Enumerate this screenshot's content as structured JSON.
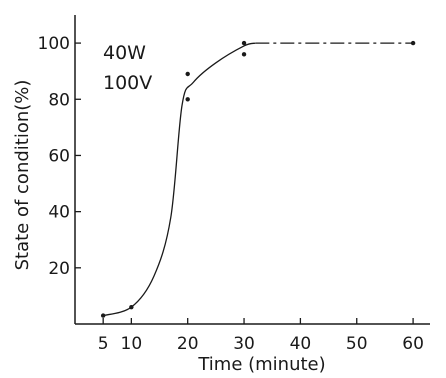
{
  "chart_data": {
    "type": "line",
    "xlabel": "Time (minute)",
    "ylabel": "State of condition(%)",
    "xlim": [
      0,
      63
    ],
    "ylim": [
      0,
      110
    ],
    "x_ticks": [
      5,
      10,
      20,
      30,
      40,
      50,
      60
    ],
    "y_ticks": [
      20,
      40,
      60,
      80,
      100
    ],
    "annotations": [
      "40W",
      "100V"
    ],
    "points": [
      {
        "x": 5,
        "y": 3
      },
      {
        "x": 10,
        "y": 6
      },
      {
        "x": 20,
        "y": 89
      },
      {
        "x": 20,
        "y": 80
      },
      {
        "x": 30,
        "y": 100
      },
      {
        "x": 30,
        "y": 96
      },
      {
        "x": 60,
        "y": 100
      }
    ],
    "curve": [
      [
        5,
        3
      ],
      [
        10,
        6
      ],
      [
        14,
        17
      ],
      [
        17,
        38
      ],
      [
        19,
        78
      ],
      [
        21,
        86
      ],
      [
        25,
        93
      ],
      [
        30,
        99
      ],
      [
        32,
        100
      ]
    ],
    "dashed_segment": [
      [
        32,
        100
      ],
      [
        60,
        100
      ]
    ]
  }
}
